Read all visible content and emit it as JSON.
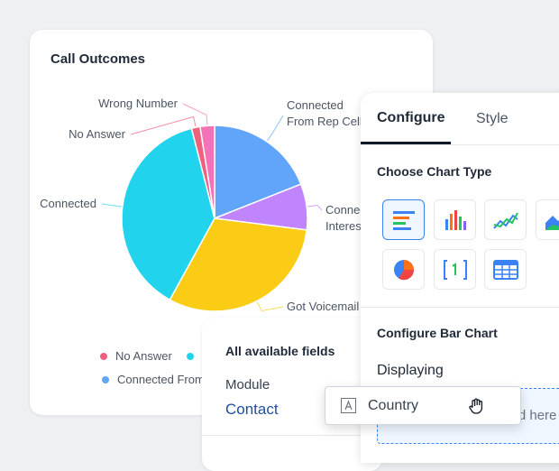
{
  "chart_data": {
    "type": "pie",
    "title": "Call Outcomes",
    "categories": [
      "Connected From Rep Cell",
      "Connected Interested",
      "Got Voicemail",
      "Connected",
      "No Answer",
      "Wrong Number"
    ],
    "values": [
      19,
      8,
      31,
      38,
      1.5,
      2.5
    ],
    "colors": [
      "#60a5fa",
      "#c084fc",
      "#facc15",
      "#22d3ee",
      "#f0607e",
      "#f472b6"
    ]
  },
  "config_panel": {
    "tabs": [
      "Configure",
      "Style"
    ],
    "chart_type_heading": "Choose Chart Type",
    "section_heading": "Configure Bar Chart",
    "displaying_label": "Displaying",
    "drop_placeholder": "Drag field here"
  },
  "fields_card": {
    "title": "All available fields",
    "module_label": "Module",
    "module_value": "Contact"
  },
  "drag_chip": {
    "label": "Country"
  }
}
